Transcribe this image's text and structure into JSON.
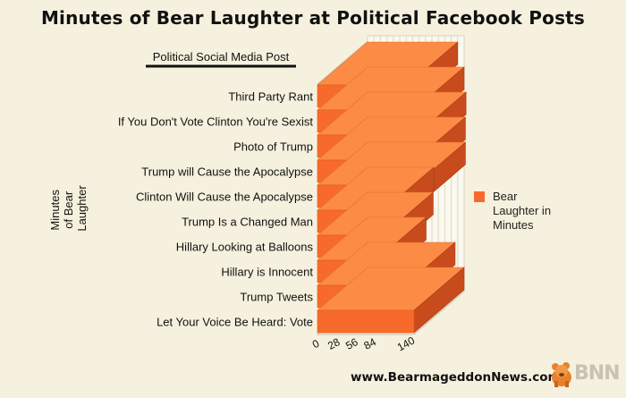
{
  "chart_data": {
    "type": "bar",
    "orientation": "horizontal",
    "title": "Minutes of Bear Laughter at Political Facebook Posts",
    "category_axis_title": "Political Social Media Post",
    "value_axis_title": "Minutes of Bear Laughter",
    "categories": [
      "Third Party Rant",
      "If You Don't Vote Clinton You're Sexist",
      "Photo of Trump",
      "Trump will Cause the Apocalypse",
      "Clinton Will Cause the Apocalypse",
      "Trump Is a Changed Man",
      "Hillary Looking at Balloons",
      "Hillary is Innocent",
      "Trump Tweets",
      "Let Your Voice Be Heard: Vote"
    ],
    "series": [
      {
        "name": "Bear Laughter in Minutes",
        "values": [
          140,
          150,
          153,
          152,
          152,
          103,
          102,
          91,
          136,
          150
        ]
      }
    ],
    "ticks": [
      "0",
      "28",
      "56",
      "84",
      "140"
    ],
    "xlim": [
      0,
      150
    ],
    "legend_position": "right",
    "grid": true,
    "colors": {
      "bar_front": "#f76a2c",
      "bar_top": "#fb8b45",
      "bar_side": "#c84b1d"
    }
  },
  "footer": {
    "site": "www.BearmageddonNews.com",
    "logo": "BNN"
  }
}
